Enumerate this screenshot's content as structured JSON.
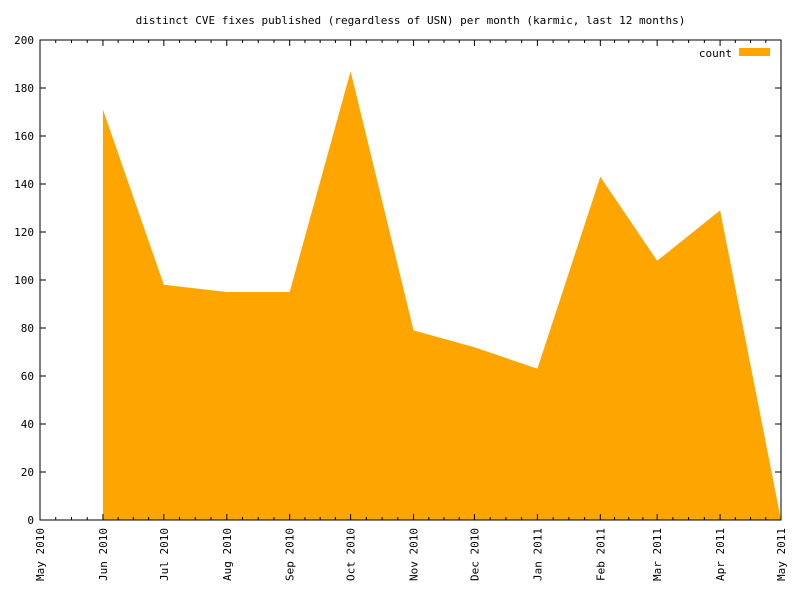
{
  "chart_data": {
    "type": "area",
    "title": "distinct CVE fixes published (regardless of USN) per month (karmic, last 12 months)",
    "xlabel": "",
    "ylabel": "",
    "ylim": [
      0,
      200
    ],
    "yticks": [
      0,
      20,
      40,
      60,
      80,
      100,
      120,
      140,
      160,
      180,
      200
    ],
    "xlim": [
      "2010-05-01",
      "2011-05-01"
    ],
    "xticks": [
      {
        "date": "2010-05-01",
        "label": "May 2010"
      },
      {
        "date": "2010-06-01",
        "label": "Jun 2010"
      },
      {
        "date": "2010-07-01",
        "label": "Jul 2010"
      },
      {
        "date": "2010-08-01",
        "label": "Aug 2010"
      },
      {
        "date": "2010-09-01",
        "label": "Sep 2010"
      },
      {
        "date": "2010-10-01",
        "label": "Oct 2010"
      },
      {
        "date": "2010-11-01",
        "label": "Nov 2010"
      },
      {
        "date": "2010-12-01",
        "label": "Dec 2010"
      },
      {
        "date": "2011-01-01",
        "label": "Jan 2011"
      },
      {
        "date": "2011-02-01",
        "label": "Feb 2011"
      },
      {
        "date": "2011-03-01",
        "label": "Mar 2011"
      },
      {
        "date": "2011-04-01",
        "label": "Apr 2011"
      },
      {
        "date": "2011-05-01",
        "label": "May 2011"
      }
    ],
    "series": [
      {
        "name": "count",
        "color": "#ffa500",
        "x": [
          "2010-06-01",
          "2010-07-01",
          "2010-08-01",
          "2010-09-01",
          "2010-10-01",
          "2010-11-01",
          "2010-12-01",
          "2011-01-01",
          "2011-02-01",
          "2011-03-01",
          "2011-04-01",
          "2011-05-01"
        ],
        "y": [
          171,
          98,
          95,
          95,
          187,
          79,
          72,
          63,
          143,
          108,
          129,
          0
        ]
      }
    ],
    "legend": "top-right",
    "grid": false
  }
}
